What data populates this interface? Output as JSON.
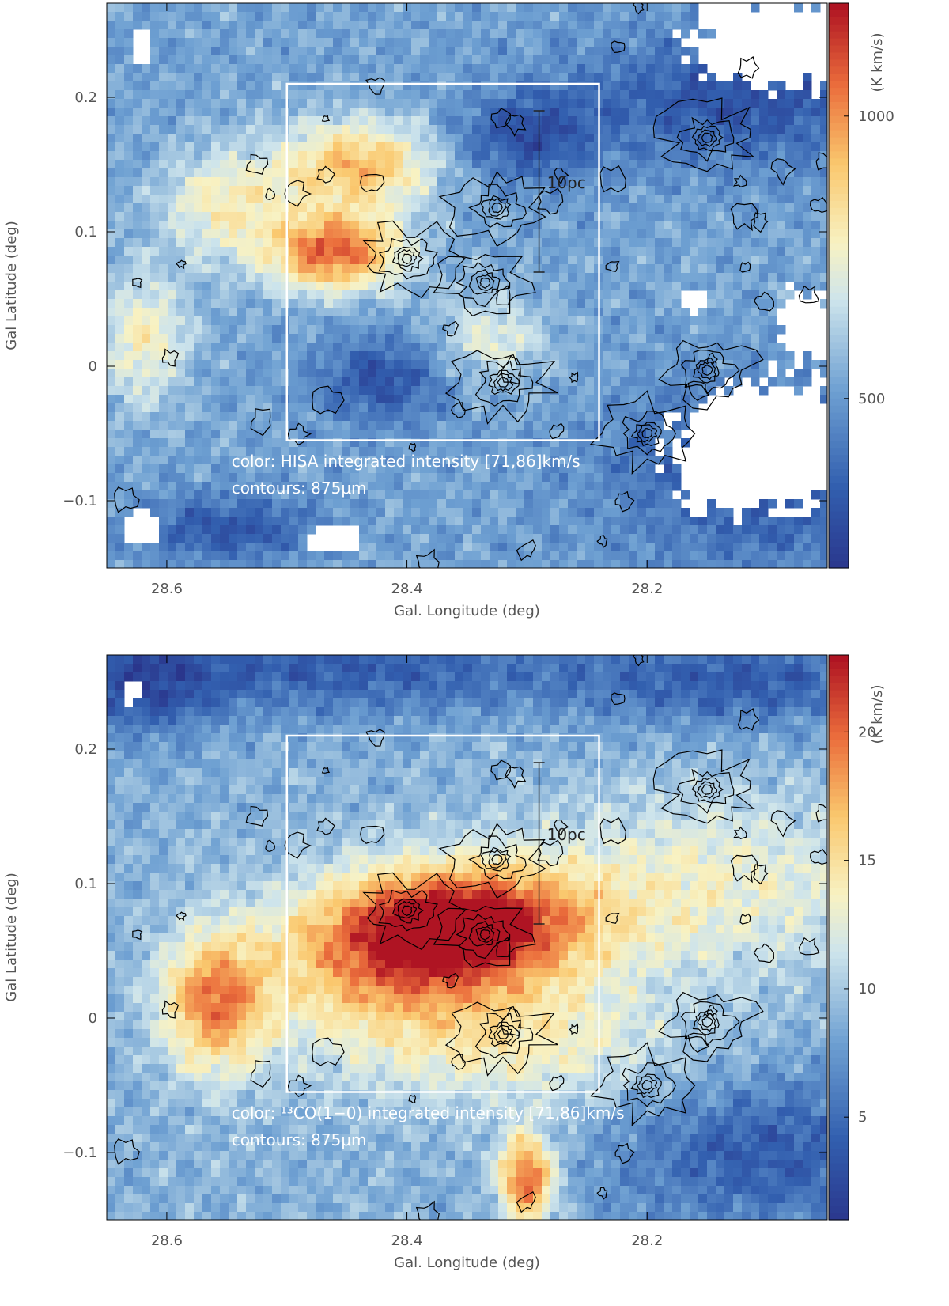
{
  "chart_data": [
    {
      "type": "heatmap",
      "panel": "top",
      "xlabel": "Gal. Longitude (deg)",
      "ylabel": "Gal Latitude (deg)",
      "xlim": [
        28.65,
        28.05
      ],
      "ylim": [
        -0.15,
        0.27
      ],
      "xticks": [
        28.6,
        28.4,
        28.2
      ],
      "xtick_labels": [
        "28.6",
        "28.4",
        "28.2"
      ],
      "yticks": [
        -0.1,
        0,
        0.1,
        0.2
      ],
      "ytick_labels": [
        "−0.1",
        "0",
        "0.1",
        "0.2"
      ],
      "colorbar": {
        "label": "(K km/s)",
        "ticks": [
          500,
          1000
        ],
        "tick_labels": [
          "500",
          "1000"
        ],
        "range": [
          200,
          1200
        ],
        "scale": "blue-white-red"
      },
      "box": {
        "l_range": [
          28.5,
          28.24
        ],
        "b_range": [
          -0.055,
          0.21
        ]
      },
      "scale_bar": {
        "label": "10pc",
        "l": 28.29,
        "b_range": [
          0.07,
          0.19
        ]
      },
      "annotation_lines": [
        "color: HISA integrated intensity [71,86]km/s",
        "contours: 875μm"
      ],
      "blank_regions_note": "white areas = no data",
      "compact_sources": [
        {
          "l": 28.4,
          "b": 0.08
        },
        {
          "l": 28.325,
          "b": 0.118
        },
        {
          "l": 28.335,
          "b": 0.062
        },
        {
          "l": 28.32,
          "b": -0.012
        },
        {
          "l": 28.2,
          "b": -0.05
        },
        {
          "l": 28.15,
          "b": -0.003
        },
        {
          "l": 28.15,
          "b": 0.17
        }
      ]
    },
    {
      "type": "heatmap",
      "panel": "bottom",
      "xlabel": "Gal. Longitude (deg)",
      "ylabel": "Gal Latitude (deg)",
      "xlim": [
        28.65,
        28.05
      ],
      "ylim": [
        -0.15,
        0.27
      ],
      "xticks": [
        28.6,
        28.4,
        28.2
      ],
      "xtick_labels": [
        "28.6",
        "28.4",
        "28.2"
      ],
      "yticks": [
        -0.1,
        0,
        0.1,
        0.2
      ],
      "ytick_labels": [
        "−0.1",
        "0",
        "0.1",
        "0.2"
      ],
      "colorbar": {
        "label": "(K km/s)",
        "ticks": [
          5,
          10,
          15,
          20
        ],
        "tick_labels": [
          "5",
          "10",
          "15",
          "20"
        ],
        "range": [
          1,
          23
        ],
        "scale": "blue-white-red"
      },
      "box": {
        "l_range": [
          28.5,
          28.24
        ],
        "b_range": [
          -0.055,
          0.21
        ]
      },
      "scale_bar": {
        "label": "10pc",
        "l": 28.29,
        "b_range": [
          0.07,
          0.19
        ]
      },
      "annotation_lines": [
        "color: ¹³CO(1−0) integrated intensity [71,86]km/s",
        "contours: 875μm"
      ],
      "compact_sources": [
        {
          "l": 28.4,
          "b": 0.08
        },
        {
          "l": 28.325,
          "b": 0.118
        },
        {
          "l": 28.335,
          "b": 0.062
        },
        {
          "l": 28.32,
          "b": -0.012
        },
        {
          "l": 28.2,
          "b": -0.05
        },
        {
          "l": 28.15,
          "b": -0.003
        },
        {
          "l": 28.15,
          "b": 0.17
        }
      ]
    }
  ]
}
